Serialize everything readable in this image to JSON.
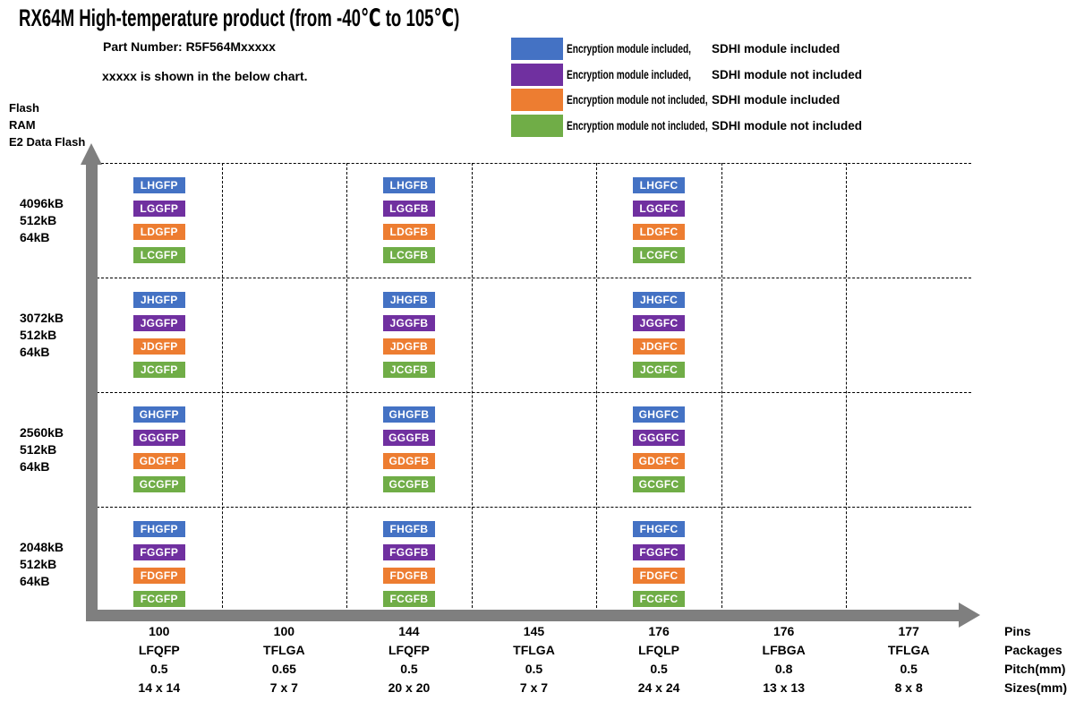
{
  "title": "RX64M High-temperature product (from -40℃ to 105℃)",
  "header": {
    "part_number": "Part Number: R5F564Mxxxxx",
    "note": "xxxxx is shown in the below chart."
  },
  "y_axis_title_lines": [
    "Flash",
    "RAM",
    "E2 Data Flash"
  ],
  "legend": {
    "items": [
      {
        "color": "#4472C4",
        "encryption": "Encryption module included,",
        "sdhi": "SDHI module included"
      },
      {
        "color": "#7030A0",
        "encryption": "Encryption module included,",
        "sdhi": "SDHI module not included"
      },
      {
        "color": "#ED7D31",
        "encryption": "Encryption module not included,",
        "sdhi": "SDHI module included"
      },
      {
        "color": "#70AD47",
        "encryption": "Encryption module not included,",
        "sdhi": "SDHI module not included"
      }
    ]
  },
  "chart_data": {
    "type": "table",
    "title": "RX64M High-temperature product (from -40℃ to 105℃)",
    "x_axis_description": "Package variants (Pins / Packages / Pitch(mm) / Sizes(mm))",
    "y_axis_description": "Memory configuration (Flash / RAM / E2 Data Flash)",
    "grid": "dashed",
    "chip_colors": [
      "#4472C4",
      "#7030A0",
      "#ED7D31",
      "#70AD47"
    ],
    "axis_color": "#7F7F7F",
    "footer_keys": [
      "Pins",
      "Packages",
      "Pitch(mm)",
      "Sizes(mm)"
    ],
    "columns": [
      {
        "pins": "100",
        "package": "LFQFP",
        "pitch": "0.5",
        "size": "14 x 14"
      },
      {
        "pins": "100",
        "package": "TFLGA",
        "pitch": "0.65",
        "size": "7 x 7"
      },
      {
        "pins": "144",
        "package": "LFQFP",
        "pitch": "0.5",
        "size": "20 x 20"
      },
      {
        "pins": "145",
        "package": "TFLGA",
        "pitch": "0.5",
        "size": "7 x 7"
      },
      {
        "pins": "176",
        "package": "LFQLP",
        "pitch": "0.5",
        "size": "24 x 24"
      },
      {
        "pins": "176",
        "package": "LFBGA",
        "pitch": "0.8",
        "size": "13 x 13"
      },
      {
        "pins": "177",
        "package": "TFLGA",
        "pitch": "0.5",
        "size": "8 x 8"
      }
    ],
    "rows": [
      {
        "flash": "4096kB",
        "ram": "512kB",
        "e2": "64kB"
      },
      {
        "flash": "3072kB",
        "ram": "512kB",
        "e2": "64kB"
      },
      {
        "flash": "2560kB",
        "ram": "512kB",
        "e2": "64kB"
      },
      {
        "flash": "2048kB",
        "ram": "512kB",
        "e2": "64kB"
      }
    ],
    "cells": [
      {
        "row": 0,
        "col": 0,
        "parts": [
          "LHGFP",
          "LGGFP",
          "LDGFP",
          "LCGFP"
        ]
      },
      {
        "row": 0,
        "col": 2,
        "parts": [
          "LHGFB",
          "LGGFB",
          "LDGFB",
          "LCGFB"
        ]
      },
      {
        "row": 0,
        "col": 4,
        "parts": [
          "LHGFC",
          "LGGFC",
          "LDGFC",
          "LCGFC"
        ]
      },
      {
        "row": 1,
        "col": 0,
        "parts": [
          "JHGFP",
          "JGGFP",
          "JDGFP",
          "JCGFP"
        ]
      },
      {
        "row": 1,
        "col": 2,
        "parts": [
          "JHGFB",
          "JGGFB",
          "JDGFB",
          "JCGFB"
        ]
      },
      {
        "row": 1,
        "col": 4,
        "parts": [
          "JHGFC",
          "JGGFC",
          "JDGFC",
          "JCGFC"
        ]
      },
      {
        "row": 2,
        "col": 0,
        "parts": [
          "GHGFP",
          "GGGFP",
          "GDGFP",
          "GCGFP"
        ]
      },
      {
        "row": 2,
        "col": 2,
        "parts": [
          "GHGFB",
          "GGGFB",
          "GDGFB",
          "GCGFB"
        ]
      },
      {
        "row": 2,
        "col": 4,
        "parts": [
          "GHGFC",
          "GGGFC",
          "GDGFC",
          "GCGFC"
        ]
      },
      {
        "row": 3,
        "col": 0,
        "parts": [
          "FHGFP",
          "FGGFP",
          "FDGFP",
          "FCGFP"
        ]
      },
      {
        "row": 3,
        "col": 2,
        "parts": [
          "FHGFB",
          "FGGFB",
          "FDGFB",
          "FCGFB"
        ]
      },
      {
        "row": 3,
        "col": 4,
        "parts": [
          "FHGFC",
          "FGGFC",
          "FDGFC",
          "FCGFC"
        ]
      }
    ]
  }
}
